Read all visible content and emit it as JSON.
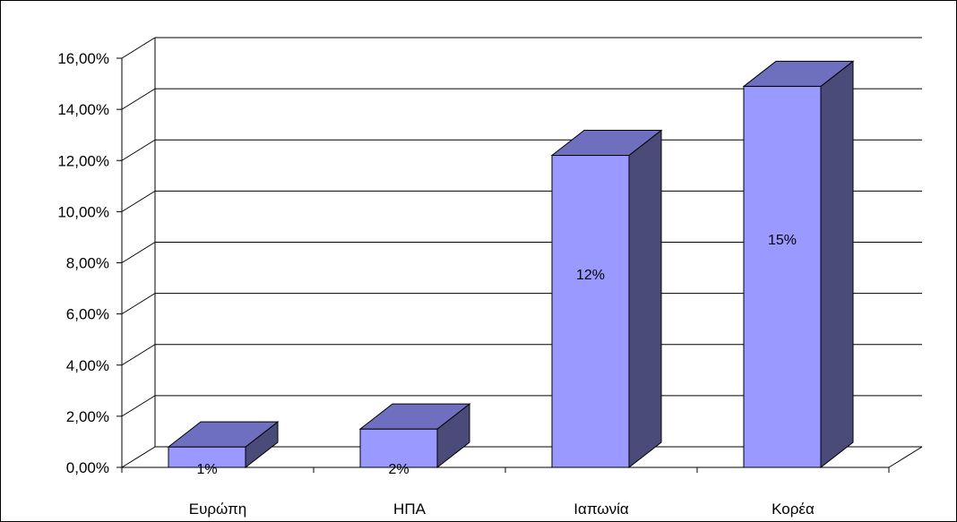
{
  "chart_data": {
    "type": "bar",
    "title": "",
    "xlabel": "",
    "ylabel": "",
    "categories": [
      "Ευρώπη",
      "ΗΠΑ",
      "Ιαπωνία",
      "Κορέα"
    ],
    "values": [
      0.8,
      1.5,
      12.2,
      14.9
    ],
    "data_labels": [
      "1%",
      "2%",
      "12%",
      "15%"
    ],
    "ylim": [
      0,
      16
    ],
    "ytick_labels": [
      "0,00%",
      "2,00%",
      "4,00%",
      "6,00%",
      "8,00%",
      "10,00%",
      "12,00%",
      "14,00%",
      "16,00%"
    ],
    "grid": true,
    "legend": "none",
    "three_d": true,
    "colors": {
      "bar_front": "#9999ff",
      "bar_top": "#6f6fc0",
      "bar_side": "#4b4b7a",
      "grid": "#000000"
    }
  }
}
